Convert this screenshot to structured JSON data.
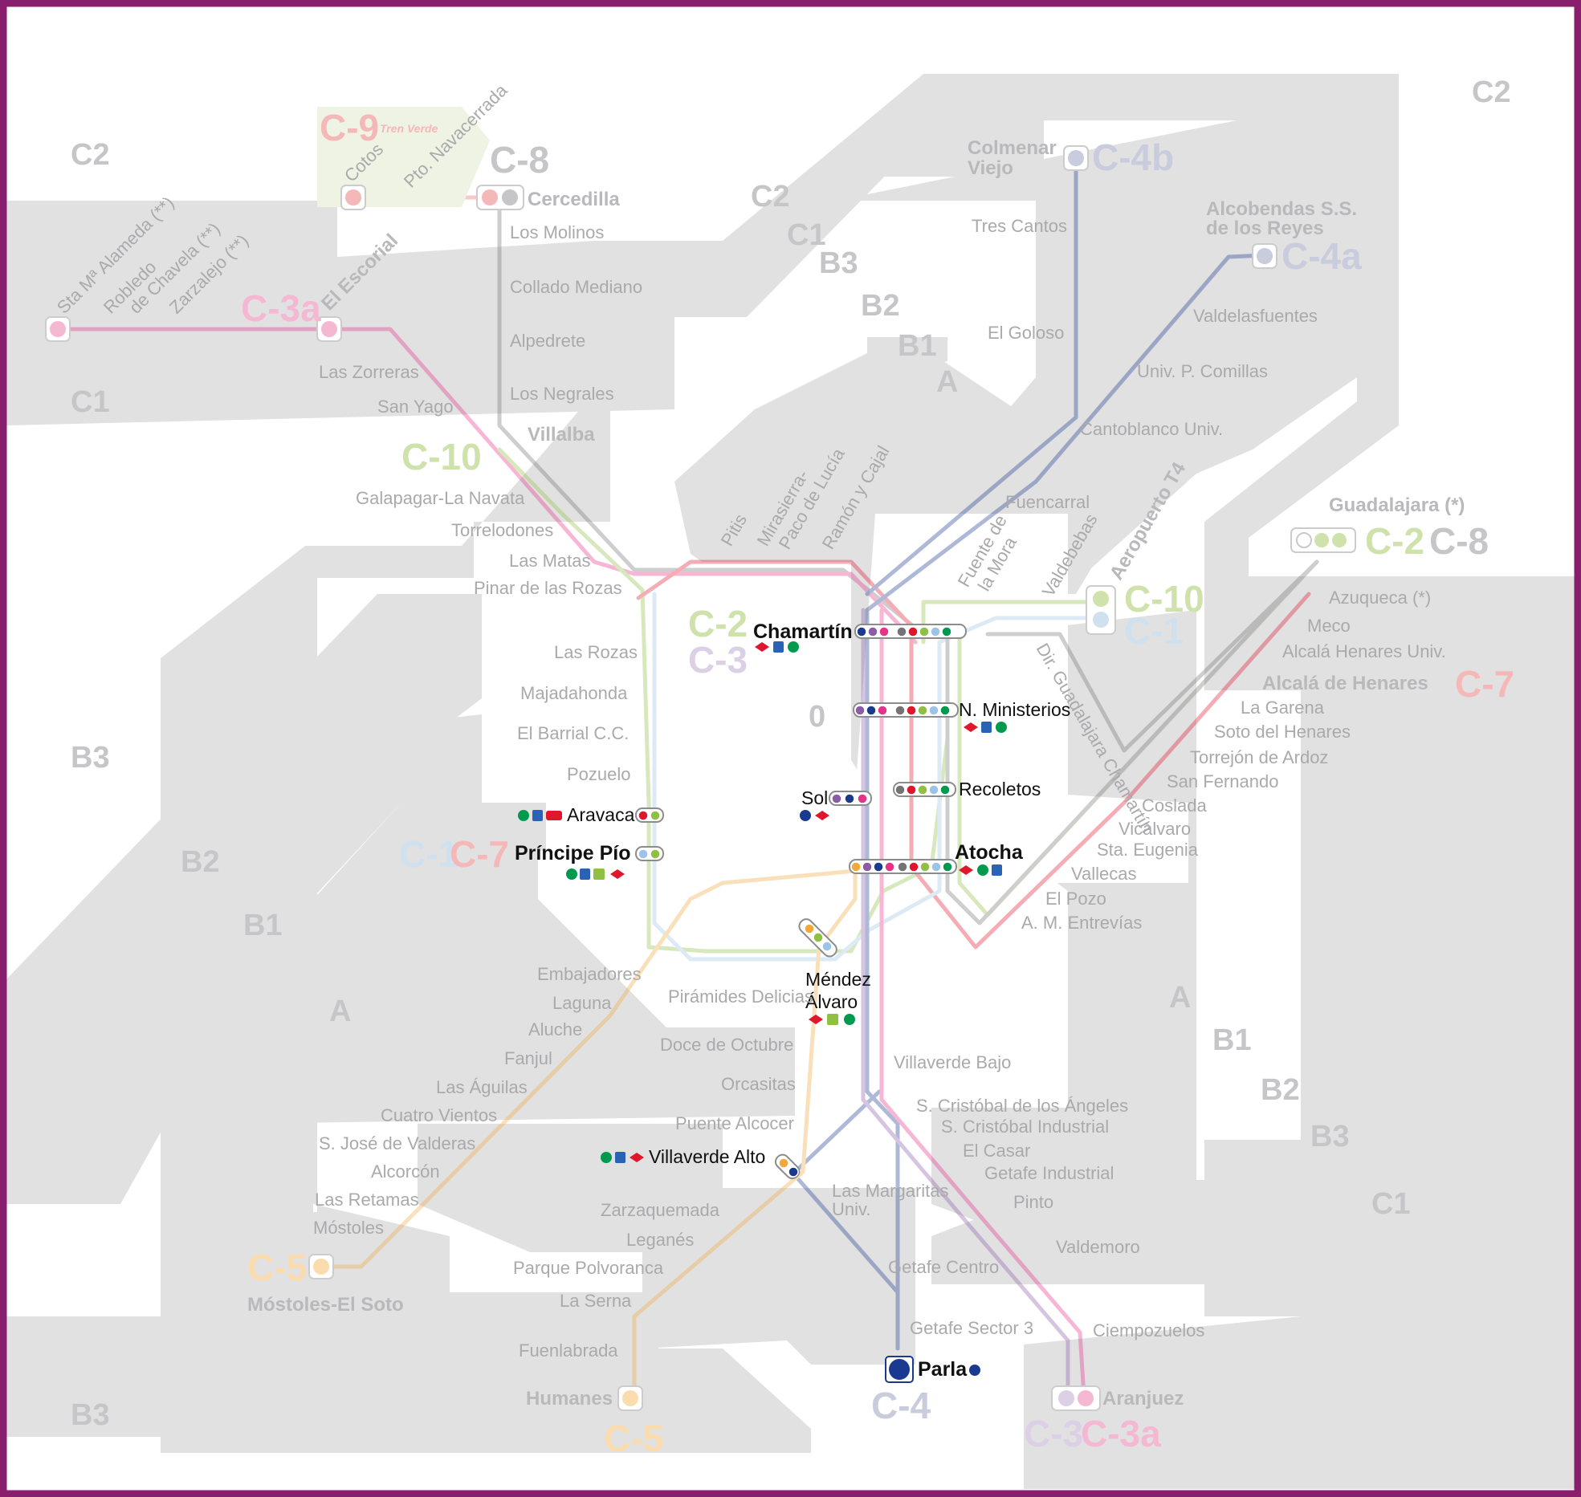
{
  "colors": {
    "zone_grey": "#e1e1e2",
    "frame": "#8a1e6e",
    "C1": "#9cc4e6",
    "C2": "#8fc043",
    "C3": "#8d5ca7",
    "C3a": "#e63287",
    "C4": "#1a3a8f",
    "C5": "#f2a93b",
    "C7": "#e0172c",
    "C8": "#747475",
    "C9": "#ea6a6a",
    "C10": "#009a4e",
    "C4a_C4b": "#1a3a8f"
  },
  "zones": [
    {
      "label": "C2"
    },
    {
      "label": "C2"
    },
    {
      "label": "C2"
    },
    {
      "label": "C1"
    },
    {
      "label": "C1"
    },
    {
      "label": "C1"
    },
    {
      "label": "B3"
    },
    {
      "label": "B3"
    },
    {
      "label": "B3"
    },
    {
      "label": "B3"
    },
    {
      "label": "B2"
    },
    {
      "label": "B2"
    },
    {
      "label": "B2"
    },
    {
      "label": "B1"
    },
    {
      "label": "B1"
    },
    {
      "label": "B1"
    },
    {
      "label": "A"
    },
    {
      "label": "A"
    },
    {
      "label": "A"
    },
    {
      "label": "0"
    }
  ],
  "lines": [
    {
      "id": "C-1",
      "label": "C-1",
      "color": "#9cc4e6"
    },
    {
      "id": "C-2",
      "label": "C-2",
      "color": "#8fc043"
    },
    {
      "id": "C-3",
      "label": "C-3",
      "color": "#8d5ca7"
    },
    {
      "id": "C-3a",
      "label": "C-3a",
      "color": "#e63287"
    },
    {
      "id": "C-4",
      "label": "C-4",
      "color": "#1a3a8f"
    },
    {
      "id": "C-4a",
      "label": "C-4a",
      "color": "#1a3a8f"
    },
    {
      "id": "C-4b",
      "label": "C-4b",
      "color": "#1a3a8f"
    },
    {
      "id": "C-5",
      "label": "C-5",
      "color": "#f2a93b"
    },
    {
      "id": "C-7",
      "label": "C-7",
      "color": "#e0172c"
    },
    {
      "id": "C-8",
      "label": "C-8",
      "color": "#747475"
    },
    {
      "id": "C-9",
      "label": "C-9",
      "color": "#ea6a6a"
    },
    {
      "id": "C-10",
      "label": "C-10",
      "color": "#009a4e"
    }
  ],
  "line_labels": {
    "c9": "C-9",
    "c8_top": "C-8",
    "c3a_left": "C-3a",
    "c10_left": "C-10",
    "c4b": "C-4b",
    "c4a": "C-4a",
    "c2_right": "C-2",
    "c8_right": "C-8",
    "c10_right": "C-10",
    "c1_right": "C-1",
    "c7_right": "C-7",
    "c2_center": "C-2",
    "c3_center": "C-3",
    "c1_left": "C-1",
    "c7_left": "C-7",
    "c5_left": "C-5",
    "c5_bottom": "C-5",
    "c4_bottom": "C-4",
    "c3_bottom": "C-3",
    "c3a_bottom": "C-3a"
  },
  "tren_verde": "Tren Verde",
  "stations_hub": {
    "chamartin": "Chamartín",
    "nuevos_ministerios": "N. Ministerios",
    "recoletos": "Recoletos",
    "sol": "Sol",
    "atocha": "Atocha",
    "principe_pio": "Príncipe Pío",
    "aravaca": "Aravaca",
    "mendez_alvaro_1": "Méndez",
    "mendez_alvaro_2": "Álvaro",
    "villaverde_alto": "Villaverde Alto",
    "parla": "Parla"
  },
  "stations_faded": {
    "cotos": "Cotos",
    "pto_navacerrada": "Pto. Navacerrada",
    "cercedilla": "Cercedilla",
    "los_molinos": "Los Molinos",
    "collado_mediano": "Collado Mediano",
    "alpedrete": "Alpedrete",
    "los_negrales": "Los Negrales",
    "villalba": "Villalba",
    "sta_m_alameda": "Sta Mª Alameda (**)",
    "robledo_1": "Robledo",
    "robledo_2": "de Chavela (**)",
    "zarzalejo": "Zarzalejo (**)",
    "el_escorial": "El Escorial",
    "las_zorreras": "Las Zorreras",
    "san_yago": "San Yago",
    "galapagar": "Galapagar-La Navata",
    "torrelodones": "Torrelodones",
    "las_matas": "Las Matas",
    "pinar": "Pinar de las Rozas",
    "las_rozas": "Las Rozas",
    "majadahonda": "Majadahonda",
    "el_barrial": "El Barrial C.C.",
    "pozuelo": "Pozuelo",
    "colmenar_1": "Colmenar",
    "colmenar_2": "Viejo",
    "tres_cantos": "Tres Cantos",
    "el_goloso": "El Goloso",
    "cantoblanco": "Cantoblanco Univ.",
    "fuencarral": "Fuencarral",
    "alcobendas_1": "Alcobendas S.S.",
    "alcobendas_2": "de los Reyes",
    "valdelasfuentes": "Valdelasfuentes",
    "univ_comillas": "Univ. P. Comillas",
    "aeropuerto": "Aeropuerto T4",
    "valdebebas": "Valdebebas",
    "fuente_mora_1": "Fuente de",
    "fuente_mora_2": "la Mora",
    "pitis": "Pitis",
    "mirasierra_1": "Mirasierra-",
    "mirasierra_2": "Paco de Lucía",
    "ramon_cajal": "Ramón y Cajal",
    "guadalajara": "Guadalajara (*)",
    "azuqueca": "Azuqueca (*)",
    "meco": "Meco",
    "alcala_univ": "Alcalá Henares Univ.",
    "alcala": "Alcalá de Henares",
    "la_garena": "La Garena",
    "soto": "Soto del Henares",
    "torrejon": "Torrejón de Ardoz",
    "san_fernando": "San Fernando",
    "coslada": "Coslada",
    "vicalvaro": "Vicálvaro",
    "sta_eugenia": "Sta. Eugenia",
    "vallecas": "Vallecas",
    "el_pozo": "El Pozo",
    "am_entrevias": "A. M. Entrevías",
    "chamartin_dir": "Dir. Guadalajara Chamartín",
    "embajadores": "Embajadores",
    "laguna": "Laguna",
    "aluche": "Aluche",
    "fanjul": "Fanjul",
    "las_aguilas": "Las Águilas",
    "cuatro_vientos": "Cuatro Vientos",
    "s_jose_valderas": "S. José de Valderas",
    "alcorcon": "Alcorcón",
    "las_retamas": "Las Retamas",
    "mostoles": "Móstoles",
    "mostoles_el_soto": "Móstoles-El Soto",
    "piramides": "Pirámides Delicias",
    "doce_octubre": "Doce de Octubre",
    "orcasitas": "Orcasitas",
    "puente_alcocer": "Puente Alcocer",
    "villaverde_bajo": "Villaverde Bajo",
    "s_cristobal_angeles": "S. Cristóbal de los Ángeles",
    "s_cristobal_ind": "S. Cristóbal Industrial",
    "el_casar": "El Casar",
    "getafe_industrial": "Getafe Industrial",
    "pinto": "Pinto",
    "valdemoro": "Valdemoro",
    "ciempozuelos": "Ciempozuelos",
    "aranjuez": "Aranjuez",
    "las_margaritas_1": "Las Margaritas",
    "las_margaritas_2": "Univ.",
    "getafe_centro": "Getafe Centro",
    "getafe_sector3": "Getafe Sector 3",
    "zarzaquemada": "Zarzaquemada",
    "leganes": "Leganés",
    "parque_polvoranca": "Parque Polvoranca",
    "la_serna": "La Serna",
    "fuenlabrada": "Fuenlabrada",
    "humanes": "Humanes"
  },
  "icons": [
    "wheelchair-icon",
    "parking-icon",
    "metro-icon",
    "bus-icon",
    "airport-icon"
  ]
}
